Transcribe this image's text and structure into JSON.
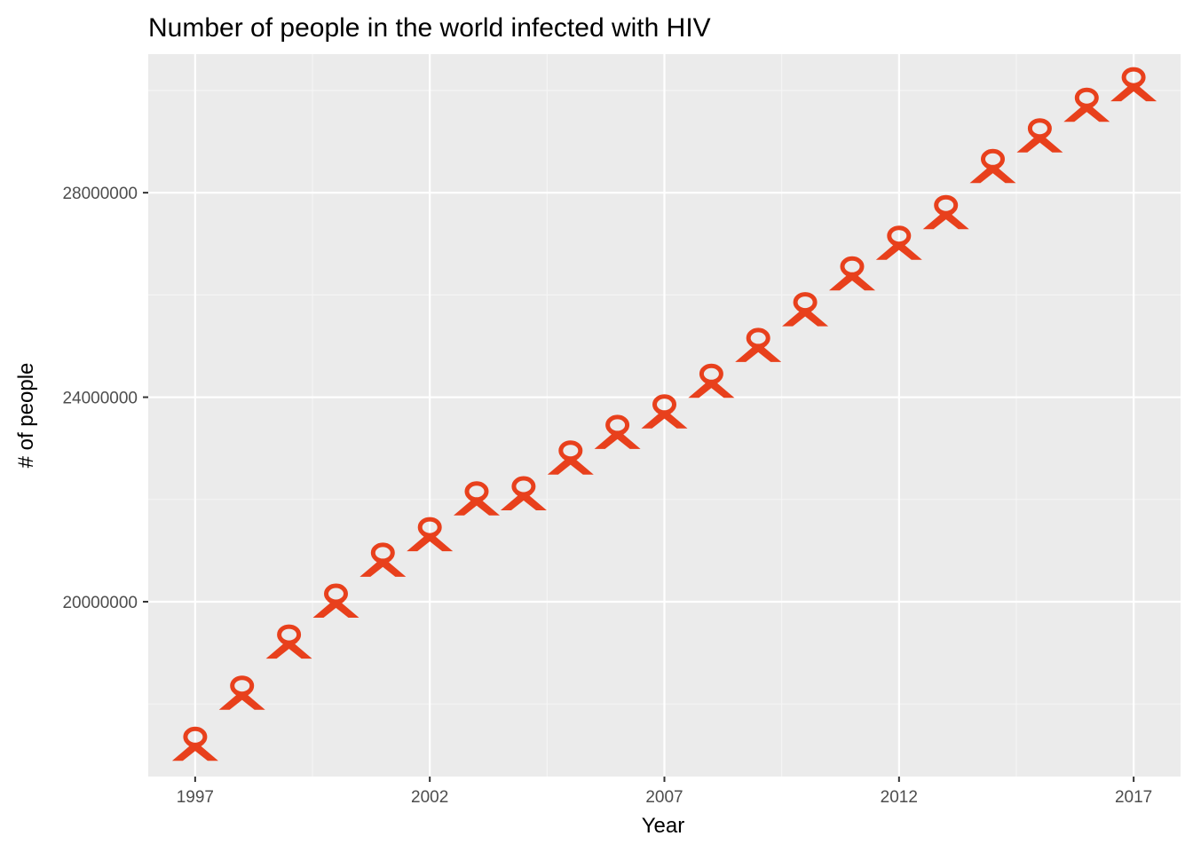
{
  "chart_data": {
    "type": "scatter",
    "title": "Number of people in the world infected with HIV",
    "xlabel": "Year",
    "ylabel": "# of people",
    "x": [
      1997,
      1998,
      1999,
      2000,
      2001,
      2002,
      2003,
      2004,
      2005,
      2006,
      2007,
      2008,
      2009,
      2010,
      2011,
      2012,
      2013,
      2014,
      2015,
      2016,
      2017
    ],
    "series": [
      {
        "values": [
          17200000,
          18200000,
          19200000,
          20000000,
          20800000,
          21300000,
          22000000,
          22100000,
          22800000,
          23300000,
          23700000,
          24300000,
          25000000,
          25700000,
          26400000,
          27000000,
          27600000,
          28500000,
          29100000,
          29700000,
          30100000
        ]
      }
    ],
    "x_ticks": [
      "1997",
      "2002",
      "2007",
      "2012",
      "2017"
    ],
    "y_ticks": [
      "20000000",
      "24000000",
      "28000000"
    ],
    "xlim": [
      1996.0,
      2018.0
    ],
    "ylim": [
      16580000,
      30710000
    ],
    "grid": true,
    "legend": "none",
    "marker": "awareness-ribbon-icon",
    "colors": {
      "marker": "#E8401C",
      "panel_background": "#EBEBEB",
      "grid_major": "#FFFFFF",
      "grid_minor": "#F5F5F5"
    }
  }
}
